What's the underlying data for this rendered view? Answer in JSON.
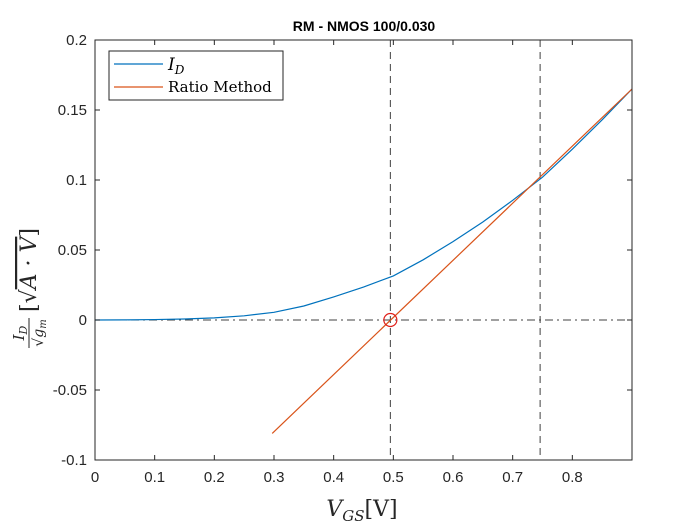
{
  "chart_data": {
    "type": "line",
    "title": "RM - NMOS 100/0.030",
    "xlabel": {
      "main": "V",
      "sub": "GS",
      "unit": "[V]"
    },
    "ylabel": {
      "num_main": "I",
      "num_sub": "D",
      "den_root": "√",
      "den_main": "g",
      "den_sub": "m",
      "unit_open": "[",
      "unit_root": "√",
      "unit_body": "A · V",
      "unit_close": "]"
    },
    "xlim": [
      0,
      0.9
    ],
    "ylim": [
      -0.1,
      0.2
    ],
    "xticks": [
      0,
      0.1,
      0.2,
      0.3,
      0.4,
      0.5,
      0.6,
      0.7,
      0.8
    ],
    "xtick_labels": [
      "0",
      "0.1",
      "0.2",
      "0.3",
      "0.4",
      "0.5",
      "0.6",
      "0.7",
      "0.8"
    ],
    "yticks": [
      -0.1,
      -0.05,
      0,
      0.05,
      0.1,
      0.15,
      0.2
    ],
    "ytick_labels": [
      "-0.1",
      "-0.05",
      "0",
      "0.05",
      "0.1",
      "0.15",
      "0.2"
    ],
    "grid": false,
    "legend_position": "top-left",
    "series": [
      {
        "name": "I_D",
        "legend_main": "I",
        "legend_sub": "D",
        "color": "#0072BD",
        "x": [
          0,
          0.05,
          0.1,
          0.15,
          0.2,
          0.25,
          0.3,
          0.35,
          0.4,
          0.45,
          0.5,
          0.55,
          0.6,
          0.65,
          0.7,
          0.75,
          0.8,
          0.85,
          0.9
        ],
        "y": [
          0,
          0.0001,
          0.0003,
          0.0007,
          0.0015,
          0.003,
          0.0055,
          0.01,
          0.0165,
          0.0235,
          0.0315,
          0.043,
          0.056,
          0.07,
          0.0855,
          0.102,
          0.122,
          0.143,
          0.165
        ]
      },
      {
        "name": "Ratio Method",
        "legend_label": "Ratio Method",
        "color": "#D95319",
        "x": [
          0.297,
          0.9
        ],
        "y": [
          -0.081,
          0.165
        ]
      }
    ],
    "reference_lines": {
      "vertical_dashed_x": [
        0.495,
        0.746,
        0.9
      ],
      "horizontal_dashdot_y": 0
    },
    "marker": {
      "x": 0.495,
      "y": 0,
      "shape": "circle",
      "color": "#E0201A"
    }
  }
}
